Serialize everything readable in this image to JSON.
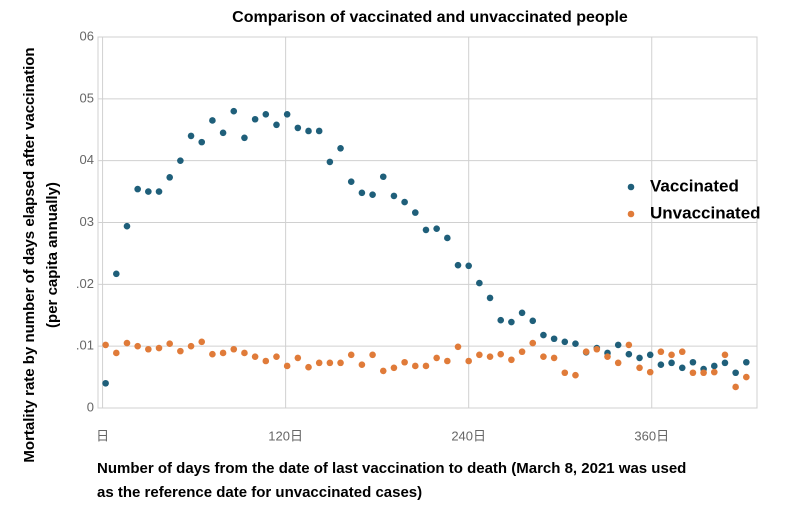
{
  "chart_data": {
    "type": "scatter",
    "title": "Comparison of vaccinated and unvaccinated people",
    "xlabel": [
      "Number of days from the date of last vaccination to death (March 8, 2021 was used",
      "as the reference date for unvaccinated cases)"
    ],
    "ylabel": [
      "Mortality rate by number of days elapsed after vaccination",
      "(per capita annually)"
    ],
    "x": [
      2,
      9,
      16,
      23,
      30,
      37,
      44,
      51,
      58,
      65,
      72,
      79,
      86,
      93,
      100,
      107,
      114,
      121,
      128,
      135,
      142,
      149,
      156,
      163,
      170,
      177,
      184,
      191,
      198,
      205,
      212,
      219,
      226,
      233,
      240,
      247,
      254,
      261,
      268,
      275,
      282,
      289,
      296,
      303,
      310,
      317,
      324,
      331,
      338,
      345,
      352,
      359,
      366,
      373,
      380,
      387,
      394,
      401,
      408,
      415,
      422
    ],
    "series": [
      {
        "name": "Vaccinated",
        "color": "#1f5f7a",
        "values": [
          0.004,
          0.0217,
          0.0294,
          0.0354,
          0.035,
          0.035,
          0.0373,
          0.04,
          0.044,
          0.043,
          0.0465,
          0.0445,
          0.048,
          0.0437,
          0.0467,
          0.0475,
          0.0458,
          0.0475,
          0.0453,
          0.0448,
          0.0448,
          0.0398,
          0.042,
          0.0366,
          0.0348,
          0.0345,
          0.0374,
          0.0343,
          0.0333,
          0.0316,
          0.0288,
          0.029,
          0.0275,
          0.0231,
          0.023,
          0.0202,
          0.0178,
          0.0142,
          0.0139,
          0.0154,
          0.0141,
          0.0118,
          0.0112,
          0.0107,
          0.0104,
          0.009,
          0.0097,
          0.0089,
          0.0102,
          0.0087,
          0.0081,
          0.0086,
          0.007,
          0.0073,
          0.0065,
          0.0074,
          0.0063,
          0.0068,
          0.0073,
          0.0057,
          0.0074
        ]
      },
      {
        "name": "Unvaccinated",
        "color": "#e07b39",
        "values": [
          0.0102,
          0.0089,
          0.0105,
          0.01,
          0.0095,
          0.0097,
          0.0104,
          0.0092,
          0.01,
          0.0107,
          0.0087,
          0.0089,
          0.0095,
          0.0089,
          0.0083,
          0.0076,
          0.0083,
          0.0068,
          0.0081,
          0.0066,
          0.0073,
          0.0073,
          0.0073,
          0.0086,
          0.007,
          0.0086,
          0.006,
          0.0065,
          0.0074,
          0.0068,
          0.0068,
          0.0081,
          0.0076,
          0.0099,
          0.0076,
          0.0086,
          0.0083,
          0.0087,
          0.0078,
          0.0091,
          0.0105,
          0.0083,
          0.0081,
          0.0057,
          0.0053,
          0.0091,
          0.0095,
          0.0083,
          0.0073,
          0.0102,
          0.0065,
          0.0058,
          0.0091,
          0.0086,
          0.0091,
          0.0057,
          0.0057,
          0.0058,
          0.0086,
          0.0034,
          0.005
        ]
      }
    ],
    "xlim": [
      -3,
      429
    ],
    "xticks": [
      {
        "value": 0,
        "label": "日"
      },
      {
        "value": 120,
        "label": "120日"
      },
      {
        "value": 240,
        "label": "240日"
      },
      {
        "value": 360,
        "label": "360日"
      }
    ],
    "ylim": [
      0,
      0.06
    ],
    "yticks": [
      0,
      {
        "value": 0.01,
        "label": ".01"
      },
      {
        "value": 0.02,
        "label": ".02"
      },
      {
        "value": 0.03,
        "label": "03"
      },
      {
        "value": 0.04,
        "label": "04"
      },
      {
        "value": 0.05,
        "label": "05"
      },
      {
        "value": 0.06,
        "label": "06"
      }
    ],
    "grid": true,
    "legend": "right"
  }
}
